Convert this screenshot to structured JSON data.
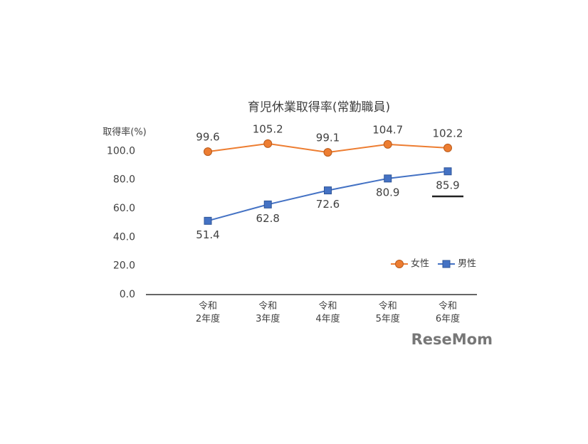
{
  "chart_data": {
    "type": "line",
    "title": "育児休業取得率(常勤職員)",
    "y_label": "取得率(%)",
    "categories": [
      [
        "令和",
        "2年度"
      ],
      [
        "令和",
        "3年度"
      ],
      [
        "令和",
        "4年度"
      ],
      [
        "令和",
        "5年度"
      ],
      [
        "令和",
        "6年度"
      ]
    ],
    "series": [
      {
        "name": "女性",
        "color": "#ed7d31",
        "marker": "circle",
        "values": [
          99.6,
          105.2,
          99.1,
          104.7,
          102.2
        ]
      },
      {
        "name": "男性",
        "color": "#4472c4",
        "marker": "square",
        "values": [
          51.4,
          62.8,
          72.6,
          80.9,
          85.9
        ]
      }
    ],
    "ylim": [
      0,
      120
    ],
    "yticks": [
      {
        "value": 0,
        "label": "0.0"
      },
      {
        "value": 20,
        "label": "20.0"
      },
      {
        "value": 40,
        "label": "40.0"
      },
      {
        "value": 60,
        "label": "60.0"
      },
      {
        "value": 80,
        "label": "80.0"
      },
      {
        "value": 100,
        "label": "100.0"
      }
    ],
    "grid": false,
    "legend": "right",
    "watermark": "ReseMom"
  }
}
